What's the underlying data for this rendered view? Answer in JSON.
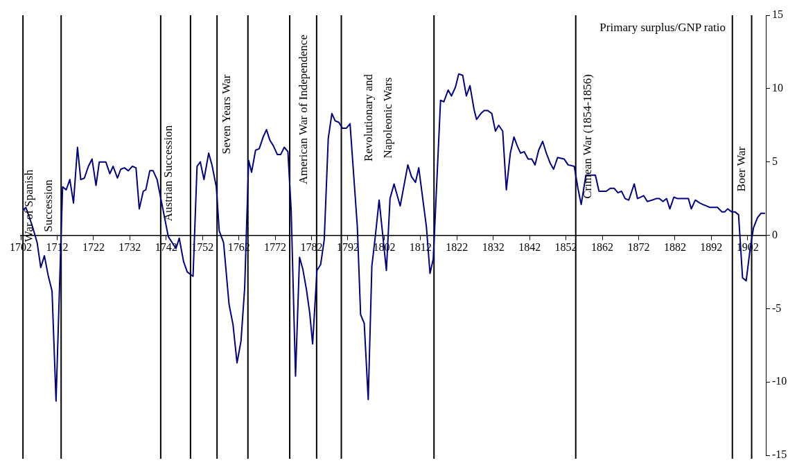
{
  "chart_data": {
    "type": "line",
    "title": "Primary surplus/GNP ratio",
    "x": [
      1702.6,
      1703.4,
      1705.2,
      1706.5,
      1707.5,
      1708.5,
      1709.5,
      1710.6,
      1711.7,
      1713.5,
      1714.5,
      1715.5,
      1716.5,
      1717.6,
      1718.5,
      1719.5,
      1720.6,
      1721.6,
      1722.7,
      1723.6,
      1725.4,
      1726.5,
      1727.4,
      1728.6,
      1729.5,
      1730.5,
      1731.6,
      1732.7,
      1733.7,
      1734.6,
      1735.7,
      1736.4,
      1737.5,
      1738.4,
      1739.5,
      1742.6,
      1744.7,
      1745.6,
      1746.8,
      1747.8,
      1749.4,
      1750.5,
      1751.4,
      1752.4,
      1753.7,
      1754.6,
      1755.8,
      1756.6,
      1757.8,
      1759.3,
      1760.4,
      1761.5,
      1762.6,
      1763.6,
      1764.7,
      1765.5,
      1766.6,
      1767.6,
      1768.7,
      1769.6,
      1770.5,
      1771.5,
      1772.6,
      1773.5,
      1774.5,
      1775.5,
      1776.4,
      1777.6,
      1778.7,
      1779.6,
      1780.6,
      1781.5,
      1782.3,
      1783.5,
      1784.5,
      1785.5,
      1786.6,
      1787.6,
      1788.5,
      1789.5,
      1790.5,
      1791.6,
      1792.6,
      1794.6,
      1795.5,
      1796.5,
      1797.6,
      1798.6,
      1799.5,
      1800.6,
      1802.6,
      1803.6,
      1804.7,
      1806.4,
      1808.5,
      1809.5,
      1810.6,
      1811.5,
      1813.6,
      1814.6,
      1815.5,
      1817.5,
      1818.4,
      1819.6,
      1820.5,
      1821.6,
      1822.5,
      1823.6,
      1824.6,
      1825.6,
      1826.7,
      1827.4,
      1828.6,
      1829.5,
      1830.5,
      1831.6,
      1832.6,
      1833.5,
      1834.6,
      1835.6,
      1836.7,
      1837.7,
      1838.6,
      1839.5,
      1840.5,
      1841.6,
      1842.6,
      1843.5,
      1844.5,
      1845.6,
      1846.6,
      1847.7,
      1848.6,
      1849.7,
      1851.5,
      1852.6,
      1854.3,
      1855.3,
      1856.2,
      1857.5,
      1858.1,
      1860.1,
      1861.1,
      1862.0,
      1863.1,
      1864.2,
      1865.3,
      1866.3,
      1867.3,
      1868.3,
      1869.3,
      1870.8,
      1871.7,
      1873.4,
      1874.4,
      1875.7,
      1876.8,
      1877.7,
      1878.7,
      1879.7,
      1880.6,
      1881.7,
      1882.7,
      1883.8,
      1884.9,
      1885.7,
      1886.5,
      1887.6,
      1888.8,
      1889.7,
      1891.6,
      1893.7,
      1894.9,
      1895.7,
      1896.5,
      1897.6,
      1898.5,
      1899.5,
      1900.6,
      1901.6,
      1902.7,
      1903.6,
      1904.7,
      1905.7,
      1906.8
    ],
    "series": [
      {
        "color": "#000080",
        "values": [
          1.7,
          1.9,
          0.6,
          -0.5,
          -2.2,
          -1.4,
          -2.7,
          -3.8,
          -11.3,
          3.3,
          3.1,
          3.8,
          2.2,
          6.0,
          3.8,
          3.9,
          4.7,
          5.2,
          3.4,
          5.0,
          5.0,
          4.2,
          4.7,
          3.9,
          4.5,
          4.6,
          4.4,
          4.7,
          4.6,
          1.8,
          3.0,
          3.1,
          4.4,
          4.4,
          3.8,
          -0.1,
          -0.9,
          -0.2,
          -1.8,
          -2.5,
          -2.8,
          4.7,
          5.0,
          3.8,
          5.6,
          4.8,
          3.3,
          0.3,
          -0.5,
          -4.7,
          -6.1,
          -8.7,
          -7.2,
          -3.6,
          5.1,
          4.3,
          5.8,
          5.9,
          6.7,
          7.2,
          6.5,
          6.1,
          5.5,
          5.5,
          6.0,
          5.7,
          1.7,
          -9.6,
          -1.5,
          -2.3,
          -3.7,
          -5.3,
          -7.4,
          -2.4,
          -2.0,
          -0.3,
          6.6,
          8.3,
          7.8,
          7.7,
          7.3,
          7.3,
          7.6,
          0.6,
          -5.4,
          -6.0,
          -11.2,
          -2.1,
          -0.2,
          2.4,
          -2.4,
          2.5,
          3.5,
          2.0,
          4.8,
          4.0,
          3.6,
          4.6,
          0.6,
          -2.6,
          -1.6,
          9.2,
          9.1,
          9.9,
          9.5,
          10.1,
          11.0,
          10.9,
          9.5,
          10.2,
          8.6,
          7.9,
          8.3,
          8.5,
          8.5,
          8.3,
          7.1,
          7.5,
          7.1,
          3.1,
          5.6,
          6.7,
          6.1,
          5.6,
          5.7,
          5.2,
          5.2,
          4.8,
          5.8,
          6.4,
          5.6,
          4.9,
          4.5,
          5.3,
          5.2,
          4.8,
          4.7,
          3.2,
          2.1,
          4.1,
          4.1,
          4.1,
          3.0,
          3.0,
          3.0,
          3.2,
          3.2,
          2.9,
          3.0,
          2.5,
          2.4,
          3.5,
          2.5,
          2.7,
          2.3,
          2.4,
          2.5,
          2.5,
          2.3,
          2.5,
          1.8,
          2.6,
          2.5,
          2.5,
          2.5,
          2.5,
          1.8,
          2.4,
          2.2,
          2.1,
          1.9,
          1.9,
          1.6,
          1.6,
          1.8,
          1.6,
          1.6,
          1.4,
          -2.9,
          -3.1,
          -0.9,
          0.5,
          1.2,
          1.5,
          1.5
        ]
      }
    ],
    "xlim": [
      1702,
      1907
    ],
    "xticks": [
      1702,
      1712,
      1722,
      1732,
      1742,
      1752,
      1762,
      1772,
      1782,
      1792,
      1802,
      1812,
      1822,
      1832,
      1842,
      1852,
      1862,
      1872,
      1882,
      1892,
      1902
    ],
    "ylim": [
      -15,
      15
    ],
    "yticks": [
      -15,
      -10,
      -5,
      0,
      5,
      10,
      15
    ],
    "marker": "none",
    "line_style": "solid",
    "ref_lines": [
      {
        "axis": "x",
        "value": 1702.6,
        "color": "#000000",
        "label": "War of Spanish\nSuccession"
      },
      {
        "axis": "x",
        "value": 1713.1,
        "color": "#000000"
      },
      {
        "axis": "x",
        "value": 1740.5,
        "color": "#000000",
        "label": "Austrian Succession"
      },
      {
        "axis": "x",
        "value": 1748.7,
        "color": "#000000"
      },
      {
        "axis": "x",
        "value": 1756.0,
        "color": "#000000",
        "label": "Seven Years War"
      },
      {
        "axis": "x",
        "value": 1764.5,
        "color": "#000000"
      },
      {
        "axis": "x",
        "value": 1776.0,
        "color": "#000000",
        "label": "American War of Independence"
      },
      {
        "axis": "x",
        "value": 1783.4,
        "color": "#000000"
      },
      {
        "axis": "x",
        "value": 1790.2,
        "color": "#000000",
        "label": "Revolutionary and\nNapoleonic Wars"
      },
      {
        "axis": "x",
        "value": 1815.7,
        "color": "#000000"
      },
      {
        "axis": "x",
        "value": 1854.7,
        "color": "#000000",
        "label": "Crimean War (1854-1856)"
      },
      {
        "axis": "x",
        "value": 1897.8,
        "color": "#000000",
        "label": "Boer War"
      },
      {
        "axis": "x",
        "value": 1903.1,
        "color": "#000000"
      }
    ]
  }
}
